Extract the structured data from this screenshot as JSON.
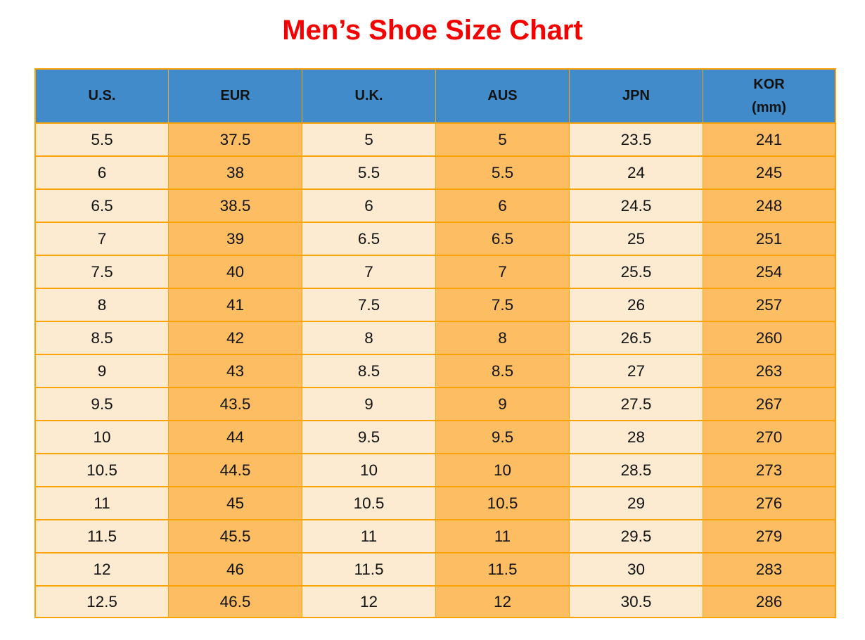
{
  "title": "Men’s Shoe Size Chart",
  "accent_colors": {
    "title_red": "#f40000",
    "header_blue": "#418bca",
    "row_cream": "#fcead1",
    "row_orange": "#fcbd63",
    "grid_line_orange": "#f9a306"
  },
  "chart_data": {
    "type": "table",
    "title": "Men’s Shoe Size Chart",
    "columns": [
      "U.S.",
      "EUR",
      "U.K.",
      "AUS",
      "JPN",
      "KOR (mm)"
    ],
    "rows": [
      [
        "5.5",
        "37.5",
        "5",
        "5",
        "23.5",
        "241"
      ],
      [
        "6",
        "38",
        "5.5",
        "5.5",
        "24",
        "245"
      ],
      [
        "6.5",
        "38.5",
        "6",
        "6",
        "24.5",
        "248"
      ],
      [
        "7",
        "39",
        "6.5",
        "6.5",
        "25",
        "251"
      ],
      [
        "7.5",
        "40",
        "7",
        "7",
        "25.5",
        "254"
      ],
      [
        "8",
        "41",
        "7.5",
        "7.5",
        "26",
        "257"
      ],
      [
        "8.5",
        "42",
        "8",
        "8",
        "26.5",
        "260"
      ],
      [
        "9",
        "43",
        "8.5",
        "8.5",
        "27",
        "263"
      ],
      [
        "9.5",
        "43.5",
        "9",
        "9",
        "27.5",
        "267"
      ],
      [
        "10",
        "44",
        "9.5",
        "9.5",
        "28",
        "270"
      ],
      [
        "10.5",
        "44.5",
        "10",
        "10",
        "28.5",
        "273"
      ],
      [
        "11",
        "45",
        "10.5",
        "10.5",
        "29",
        "276"
      ],
      [
        "11.5",
        "45.5",
        "11",
        "11",
        "29.5",
        "279"
      ],
      [
        "12",
        "46",
        "11.5",
        "11.5",
        "30",
        "283"
      ],
      [
        "12.5",
        "46.5",
        "12",
        "12",
        "30.5",
        "286"
      ]
    ]
  },
  "table": {
    "headers": [
      {
        "label": "U.S.",
        "lines": [
          "U.S."
        ]
      },
      {
        "label": "EUR",
        "lines": [
          "EUR"
        ]
      },
      {
        "label": "U.K.",
        "lines": [
          "U.K."
        ]
      },
      {
        "label": "AUS",
        "lines": [
          "AUS"
        ]
      },
      {
        "label": "JPN",
        "lines": [
          "JPN"
        ]
      },
      {
        "label": "KOR (mm)",
        "lines": [
          "KOR",
          "(mm)"
        ]
      }
    ]
  }
}
